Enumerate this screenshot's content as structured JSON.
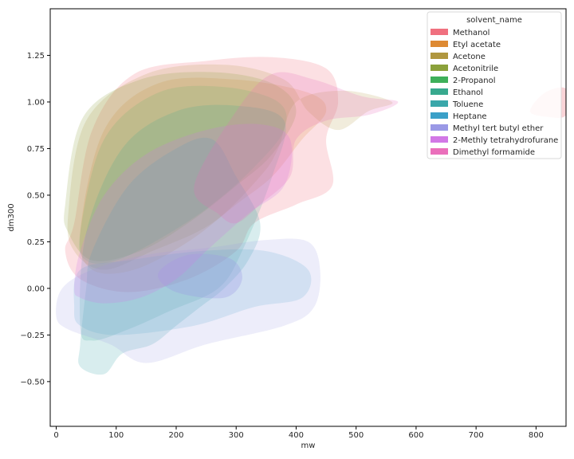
{
  "chart_data": {
    "type": "kde-contour",
    "xlabel": "mw",
    "ylabel": "dm300",
    "xlim": [
      -10,
      850
    ],
    "ylim": [
      -0.74,
      1.5
    ],
    "x_ticks": [
      0,
      100,
      200,
      300,
      400,
      500,
      600,
      700,
      800
    ],
    "y_ticks": [
      -0.5,
      -0.25,
      0.0,
      0.25,
      0.5,
      0.75,
      1.0,
      1.25
    ],
    "y_tick_labels": [
      "−0.50",
      "−0.25",
      "0.00",
      "0.25",
      "0.50",
      "0.75",
      "1.00",
      "1.25"
    ],
    "grid": false,
    "legend_position": "top-right",
    "legend_title": "solvent_name",
    "series": [
      {
        "name": "Methanol",
        "color": "#f0707f",
        "regions": [
          {
            "opacity": 0.22,
            "points": [
              [
                30,
                0.35
              ],
              [
                60,
                0.85
              ],
              [
                130,
                1.15
              ],
              [
                250,
                1.22
              ],
              [
                360,
                1.24
              ],
              [
                450,
                1.18
              ],
              [
                470,
                1.0
              ],
              [
                450,
                0.8
              ],
              [
                460,
                0.55
              ],
              [
                400,
                0.45
              ],
              [
                330,
                0.35
              ],
              [
                300,
                0.2
              ],
              [
                220,
                0.05
              ],
              [
                120,
                -0.02
              ],
              [
                40,
                0.05
              ],
              [
                15,
                0.2
              ]
            ]
          },
          {
            "opacity": 0.3,
            "points": [
              [
                790,
                0.95
              ],
              [
                815,
                1.05
              ],
              [
                850,
                1.07
              ],
              [
                850,
                0.93
              ],
              [
                820,
                0.92
              ]
            ]
          }
        ]
      },
      {
        "name": "Etyl acetate",
        "color": "#de8a33",
        "regions": [
          {
            "opacity": 0.18,
            "points": [
              [
                40,
                0.3
              ],
              [
                80,
                0.85
              ],
              [
                170,
                1.1
              ],
              [
                300,
                1.12
              ],
              [
                420,
                1.05
              ],
              [
                450,
                0.95
              ],
              [
                410,
                0.8
              ],
              [
                360,
                0.6
              ],
              [
                300,
                0.45
              ],
              [
                220,
                0.25
              ],
              [
                130,
                0.1
              ],
              [
                60,
                0.1
              ]
            ]
          }
        ]
      },
      {
        "name": "Acetone",
        "color": "#b0973f",
        "regions": [
          {
            "opacity": 0.18,
            "points": [
              [
                20,
                0.4
              ],
              [
                50,
                0.9
              ],
              [
                150,
                1.15
              ],
              [
                280,
                1.2
              ],
              [
                380,
                1.12
              ],
              [
                420,
                0.95
              ],
              [
                470,
                0.85
              ],
              [
                520,
                0.95
              ],
              [
                560,
                1.0
              ],
              [
                480,
                1.06
              ],
              [
                400,
                1.0
              ],
              [
                370,
                0.75
              ],
              [
                340,
                0.6
              ],
              [
                260,
                0.35
              ],
              [
                160,
                0.2
              ],
              [
                80,
                0.1
              ],
              [
                30,
                0.2
              ]
            ]
          }
        ]
      },
      {
        "name": "Acetonitrile",
        "color": "#8ba13b",
        "regions": [
          {
            "opacity": 0.2,
            "points": [
              [
                15,
                0.45
              ],
              [
                45,
                0.92
              ],
              [
                140,
                1.12
              ],
              [
                260,
                1.16
              ],
              [
                360,
                1.1
              ],
              [
                400,
                0.95
              ],
              [
                360,
                0.72
              ],
              [
                300,
                0.55
              ],
              [
                220,
                0.35
              ],
              [
                140,
                0.2
              ],
              [
                60,
                0.15
              ],
              [
                20,
                0.3
              ]
            ]
          }
        ]
      },
      {
        "name": "2-Propanol",
        "color": "#3eb05a",
        "regions": [
          {
            "opacity": 0.14,
            "points": [
              [
                40,
                0.3
              ],
              [
                80,
                0.8
              ],
              [
                170,
                1.05
              ],
              [
                280,
                1.08
              ],
              [
                370,
                1.0
              ],
              [
                380,
                0.85
              ],
              [
                330,
                0.65
              ],
              [
                260,
                0.45
              ],
              [
                180,
                0.28
              ],
              [
                100,
                0.15
              ],
              [
                50,
                0.15
              ]
            ]
          }
        ]
      },
      {
        "name": "Ethanol",
        "color": "#38a98e",
        "regions": [
          {
            "opacity": 0.18,
            "points": [
              [
                40,
                -0.2
              ],
              [
                50,
                0.3
              ],
              [
                110,
                0.75
              ],
              [
                200,
                0.95
              ],
              [
                300,
                0.98
              ],
              [
                380,
                0.9
              ],
              [
                360,
                0.6
              ],
              [
                310,
                0.2
              ],
              [
                270,
                0.0
              ],
              [
                190,
                -0.12
              ],
              [
                120,
                -0.22
              ],
              [
                60,
                -0.28
              ]
            ]
          }
        ]
      },
      {
        "name": "Toluene",
        "color": "#3aa7aa",
        "regions": [
          {
            "opacity": 0.2,
            "points": [
              [
                40,
                -0.3
              ],
              [
                50,
                0.0
              ],
              [
                60,
                0.2
              ],
              [
                120,
                0.55
              ],
              [
                200,
                0.75
              ],
              [
                260,
                0.8
              ],
              [
                300,
                0.6
              ],
              [
                340,
                0.35
              ],
              [
                320,
                0.15
              ],
              [
                280,
                0.0
              ],
              [
                240,
                -0.1
              ],
              [
                200,
                -0.2
              ],
              [
                160,
                -0.3
              ],
              [
                110,
                -0.35
              ],
              [
                80,
                -0.46
              ],
              [
                40,
                -0.42
              ]
            ]
          }
        ]
      },
      {
        "name": "Heptane",
        "color": "#3ba0c8",
        "regions": [
          {
            "opacity": 0.16,
            "points": [
              [
                30,
                -0.1
              ],
              [
                40,
                0.1
              ],
              [
                120,
                0.15
              ],
              [
                240,
                0.2
              ],
              [
                350,
                0.2
              ],
              [
                420,
                0.1
              ],
              [
                410,
                -0.05
              ],
              [
                330,
                -0.1
              ],
              [
                230,
                -0.2
              ],
              [
                100,
                -0.25
              ],
              [
                40,
                -0.2
              ]
            ]
          }
        ]
      },
      {
        "name": "Methyl tert butyl ether",
        "color": "#9a99e6",
        "regions": [
          {
            "opacity": 0.18,
            "points": [
              [
                0,
                -0.15
              ],
              [
                10,
                0.0
              ],
              [
                60,
                0.1
              ],
              [
                150,
                0.18
              ],
              [
                260,
                0.22
              ],
              [
                350,
                0.26
              ],
              [
                420,
                0.25
              ],
              [
                440,
                0.1
              ],
              [
                430,
                -0.1
              ],
              [
                380,
                -0.2
              ],
              [
                250,
                -0.3
              ],
              [
                150,
                -0.4
              ],
              [
                90,
                -0.3
              ],
              [
                20,
                -0.22
              ]
            ]
          },
          {
            "opacity": 0.3,
            "points": [
              [
                170,
                0.08
              ],
              [
                220,
                0.18
              ],
              [
                290,
                0.16
              ],
              [
                310,
                0.05
              ],
              [
                280,
                -0.05
              ],
              [
                200,
                -0.02
              ]
            ]
          }
        ]
      },
      {
        "name": "2-Methly tetrahydrofurane",
        "color": "#d278e6",
        "regions": [
          {
            "opacity": 0.22,
            "points": [
              [
                30,
                0.0
              ],
              [
                40,
                0.2
              ],
              [
                80,
                0.5
              ],
              [
                150,
                0.72
              ],
              [
                250,
                0.85
              ],
              [
                340,
                0.88
              ],
              [
                390,
                0.8
              ],
              [
                380,
                0.55
              ],
              [
                320,
                0.4
              ],
              [
                250,
                0.2
              ],
              [
                200,
                0.05
              ],
              [
                140,
                -0.05
              ],
              [
                80,
                -0.08
              ],
              [
                40,
                -0.05
              ]
            ]
          }
        ]
      },
      {
        "name": "Dimethyl formamide",
        "color": "#ea6fbb",
        "regions": [
          {
            "opacity": 0.22,
            "points": [
              [
                230,
                0.55
              ],
              [
                300,
                0.95
              ],
              [
                360,
                1.15
              ],
              [
                430,
                1.12
              ],
              [
                510,
                1.03
              ],
              [
                570,
                1.0
              ],
              [
                520,
                0.93
              ],
              [
                450,
                0.9
              ],
              [
                400,
                0.8
              ],
              [
                390,
                0.6
              ],
              [
                340,
                0.45
              ],
              [
                300,
                0.35
              ],
              [
                270,
                0.4
              ]
            ]
          }
        ]
      }
    ]
  }
}
